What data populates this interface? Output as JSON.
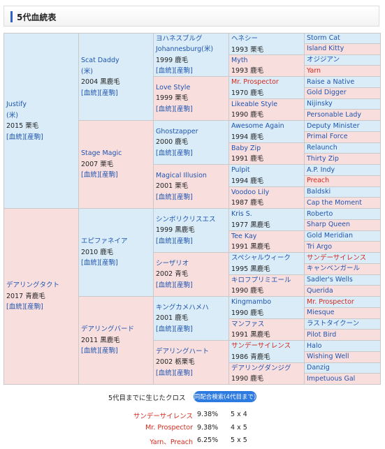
{
  "header": {
    "title": "5代血統表"
  },
  "links": [
    "[血統]",
    "[産駒]"
  ],
  "colors": {
    "sire": "#d9ecf8",
    "dam": "#f9dede",
    "link": "#1f55b0",
    "cross": "#d42a1e",
    "border": "#c9c9c9"
  },
  "pedigree": [
    [
      {
        "name": "Justify",
        "origin": "(米)",
        "year": 2015,
        "coat": "栗毛"
      },
      {
        "name": "デアリングタクト",
        "year": 2017,
        "coat": "青鹿毛"
      }
    ],
    [
      {
        "name": "Scat Daddy",
        "origin": "(米)",
        "year": 2004,
        "coat": "黒鹿毛"
      },
      {
        "name": "Stage Magic",
        "year": 2007,
        "coat": "栗毛"
      },
      {
        "name": "エピファネイア",
        "year": 2010,
        "coat": "鹿毛"
      },
      {
        "name": "デアリングバード",
        "year": 2011,
        "coat": "黒鹿毛"
      }
    ],
    [
      {
        "name": "ヨハネスブルグ",
        "name2": "Johannesburg",
        "origin": "(米)",
        "year": 1999,
        "coat": "鹿毛"
      },
      {
        "name": "Love Style",
        "year": 1999,
        "coat": "栗毛"
      },
      {
        "name": "Ghostzapper",
        "year": 2000,
        "coat": "鹿毛"
      },
      {
        "name": "Magical Illusion",
        "year": 2001,
        "coat": "栗毛"
      },
      {
        "name": "シンボリクリスエス",
        "year": 1999,
        "coat": "黒鹿毛"
      },
      {
        "name": "シーザリオ",
        "year": 2002,
        "coat": "青毛"
      },
      {
        "name": "キングカメハメハ",
        "year": 2001,
        "coat": "鹿毛"
      },
      {
        "name": "デアリングハート",
        "year": 2002,
        "coat": "栃栗毛"
      }
    ],
    [
      {
        "name": "ヘネシー",
        "year": 1993,
        "coat": "栗毛"
      },
      {
        "name": "Myth",
        "year": 1993,
        "coat": "鹿毛"
      },
      {
        "name": "Mr. Prospector",
        "year": 1970,
        "coat": "鹿毛",
        "cross": true
      },
      {
        "name": "Likeable Style",
        "year": 1990,
        "coat": "鹿毛"
      },
      {
        "name": "Awesome Again",
        "year": 1994,
        "coat": "鹿毛"
      },
      {
        "name": "Baby Zip",
        "year": 1991,
        "coat": "鹿毛"
      },
      {
        "name": "Pulpit",
        "year": 1994,
        "coat": "鹿毛"
      },
      {
        "name": "Voodoo Lily",
        "year": 1987,
        "coat": "鹿毛"
      },
      {
        "name": "Kris S.",
        "year": 1977,
        "coat": "黒鹿毛"
      },
      {
        "name": "Tee Kay",
        "year": 1991,
        "coat": "黒鹿毛"
      },
      {
        "name": "スペシャルウィーク",
        "year": 1995,
        "coat": "黒鹿毛"
      },
      {
        "name": "キロフプリミエール",
        "year": 1990,
        "coat": "鹿毛"
      },
      {
        "name": "Kingmambo",
        "year": 1990,
        "coat": "鹿毛"
      },
      {
        "name": "マンファス",
        "year": 1991,
        "coat": "黒鹿毛"
      },
      {
        "name": "サンデーサイレンス",
        "year": 1986,
        "coat": "青鹿毛",
        "cross": true
      },
      {
        "name": "デアリングダンジグ",
        "year": 1990,
        "coat": "鹿毛"
      }
    ],
    [
      {
        "name": "Storm Cat"
      },
      {
        "name": "Island Kitty"
      },
      {
        "name": "オジジアン"
      },
      {
        "name": "Yarn",
        "cross": true
      },
      {
        "name": "Raise a Native"
      },
      {
        "name": "Gold Digger"
      },
      {
        "name": "Nijinsky"
      },
      {
        "name": "Personable Lady"
      },
      {
        "name": "Deputy Minister"
      },
      {
        "name": "Primal Force"
      },
      {
        "name": "Relaunch"
      },
      {
        "name": "Thirty Zip"
      },
      {
        "name": "A.P. Indy"
      },
      {
        "name": "Preach",
        "cross": true
      },
      {
        "name": "Baldski"
      },
      {
        "name": "Cap the Moment"
      },
      {
        "name": "Roberto"
      },
      {
        "name": "Sharp Queen"
      },
      {
        "name": "Gold Meridian"
      },
      {
        "name": "Tri Argo"
      },
      {
        "name": "サンデーサイレンス",
        "cross": true
      },
      {
        "name": "キャンベンガール"
      },
      {
        "name": "Sadler's Wells"
      },
      {
        "name": "Querida"
      },
      {
        "name": "Mr. Prospector",
        "cross": true
      },
      {
        "name": "Miesque"
      },
      {
        "name": "ラストタイクーン"
      },
      {
        "name": "Pilot Bird"
      },
      {
        "name": "Halo"
      },
      {
        "name": "Wishing Well"
      },
      {
        "name": "Danzig"
      },
      {
        "name": "Impetuous Gal"
      }
    ]
  ],
  "crosses": {
    "title": "5代目までに生じたクロス",
    "button": "同配合検索(4代目まで)",
    "rows": [
      {
        "name": "サンデーサイレンス",
        "percent": "9.38%",
        "pattern": "5 x 4"
      },
      {
        "name": "Mr. Prospector",
        "percent": "9.38%",
        "pattern": "4 x 5"
      },
      {
        "name": "Yarn、Preach",
        "percent": "6.25%",
        "pattern": "5 x 5"
      }
    ]
  }
}
